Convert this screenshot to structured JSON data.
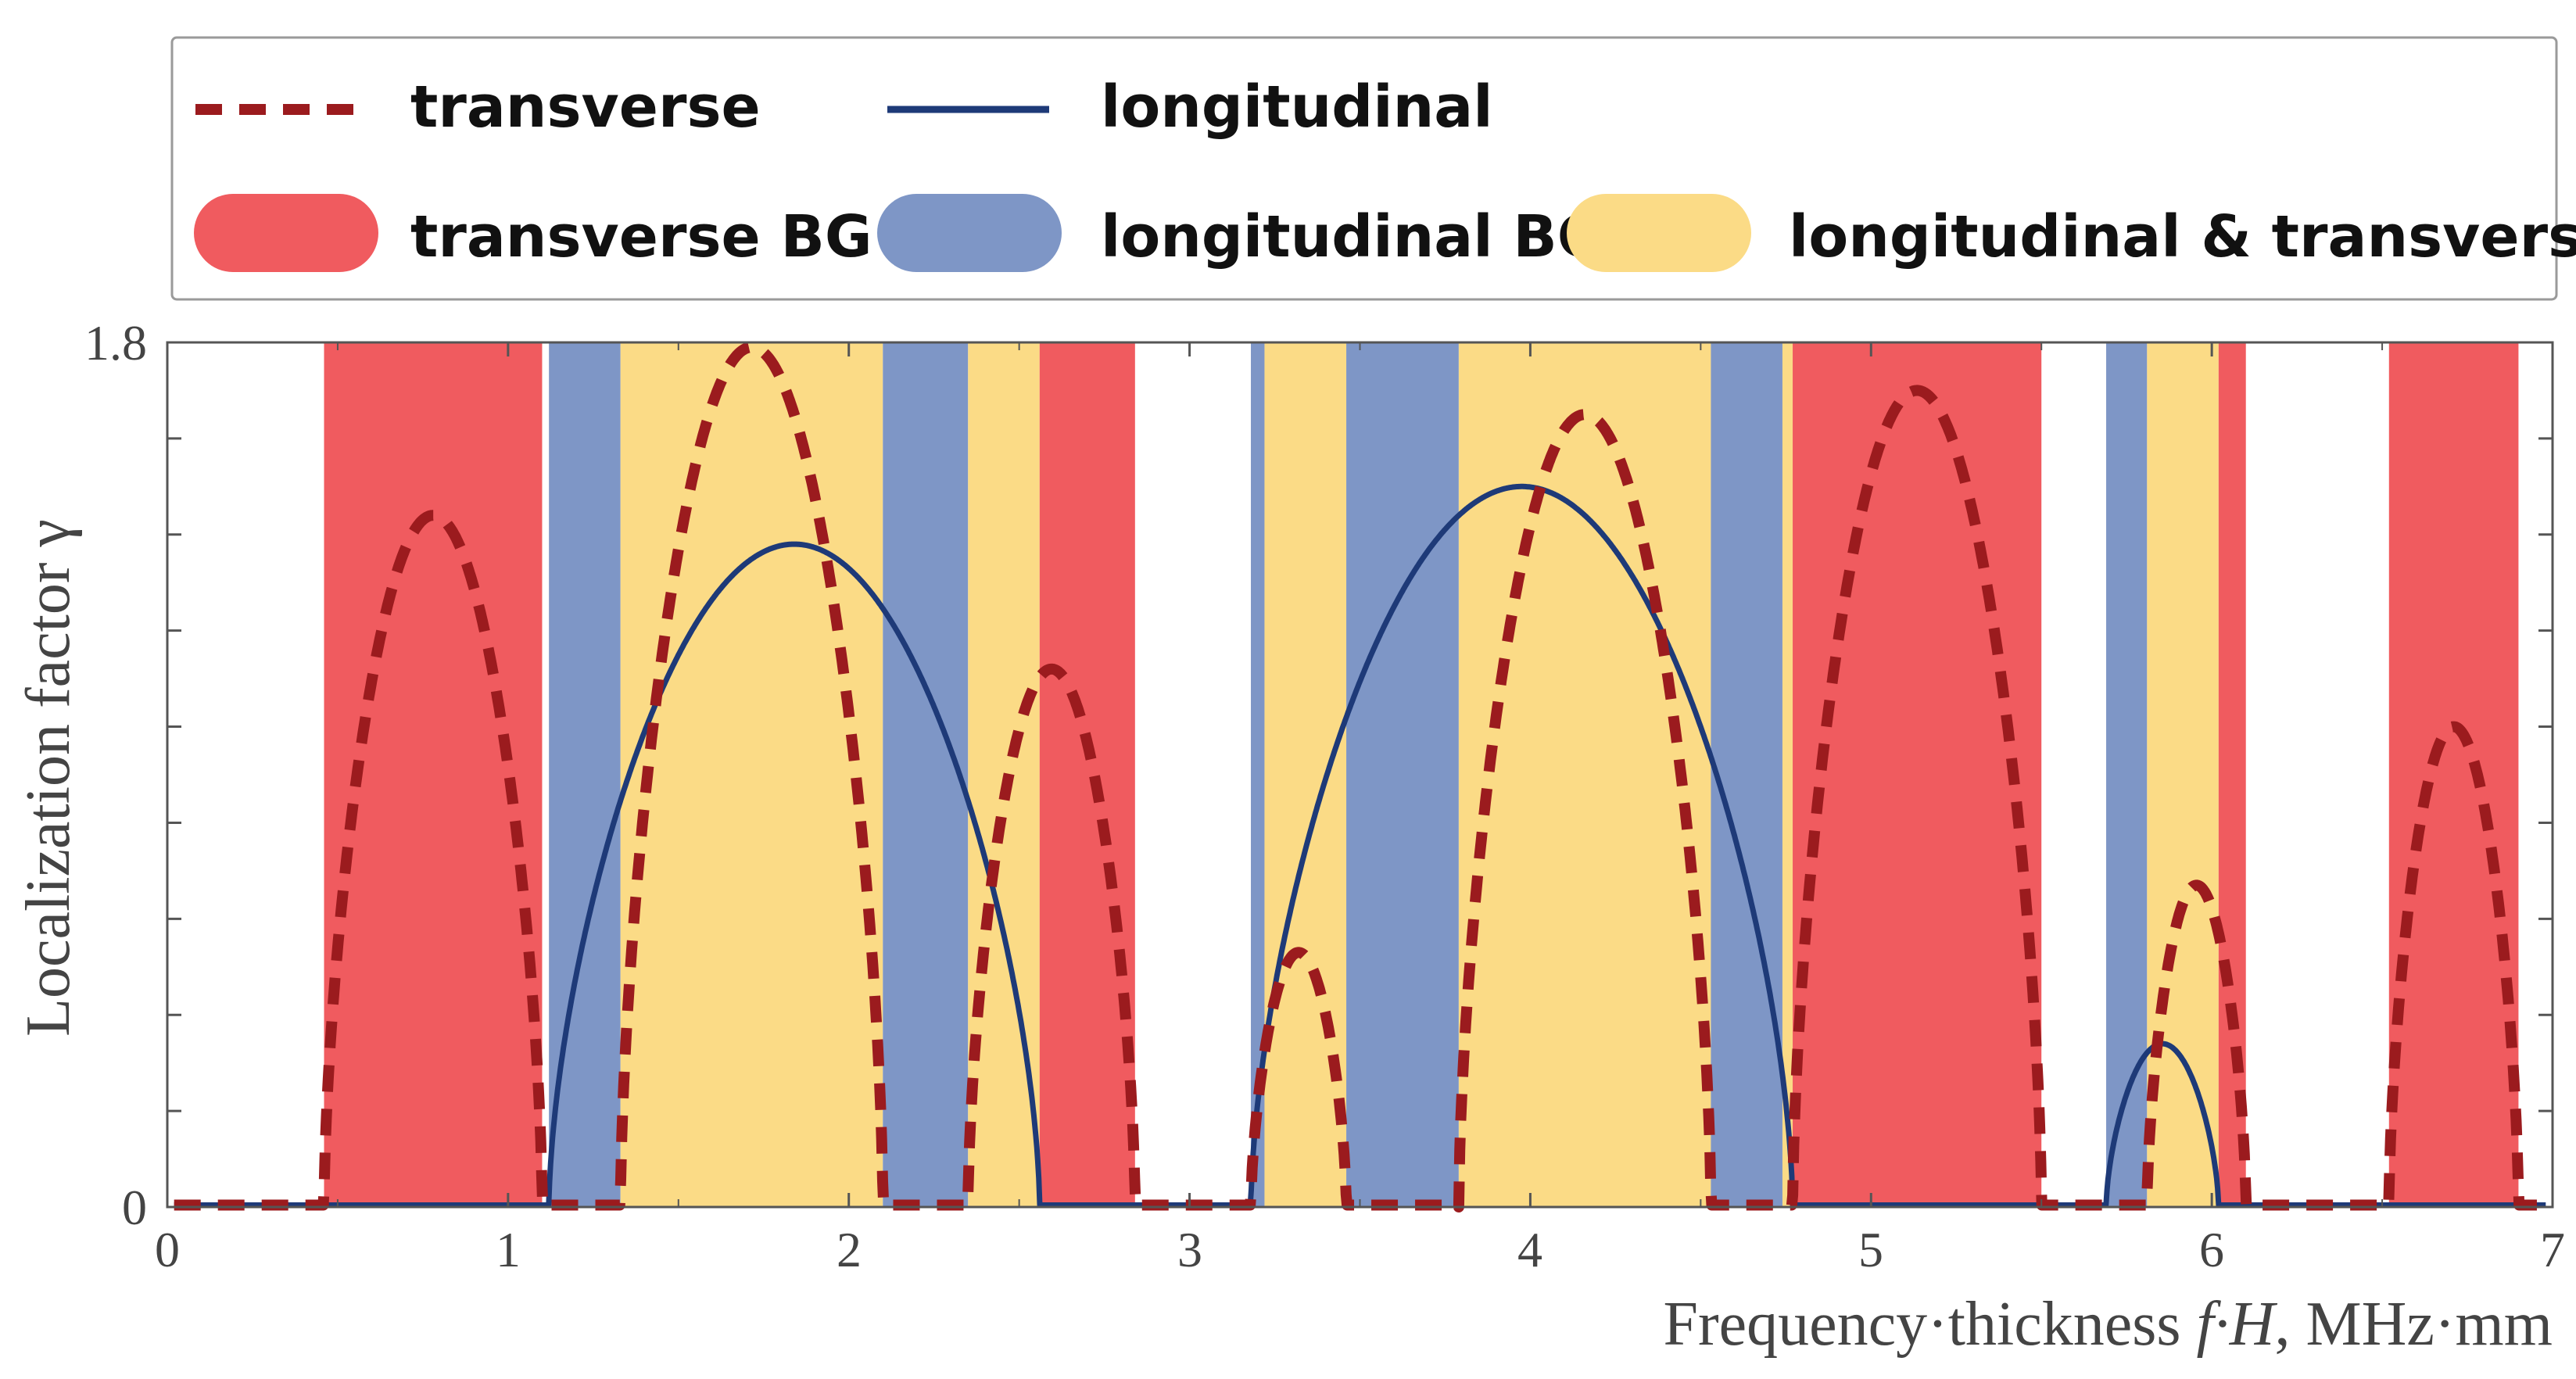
{
  "chart_data": {
    "type": "line",
    "title": "",
    "xlabel_prefix": "Frequency·thickness ",
    "xlabel_var": "f·H",
    "xlabel_suffix": ", MHz·mm",
    "ylabel": "Localization factor γ",
    "xlim": [
      0,
      7
    ],
    "ylim": [
      0,
      1.8
    ],
    "x_ticks": [
      0,
      1,
      2,
      3,
      4,
      5,
      6,
      7
    ],
    "x_tick_labels": [
      "0",
      "1",
      "2",
      "3",
      "4",
      "5",
      "6",
      "7"
    ],
    "y_tick_labels": [
      {
        "value": 0,
        "label": "0"
      },
      {
        "value": 1.8,
        "label": "1.8"
      }
    ],
    "y_minor_ticks": [
      0.2,
      0.4,
      0.6,
      0.8,
      1.0,
      1.2,
      1.4,
      1.6
    ],
    "legend": {
      "placement": "top",
      "lines": [
        {
          "label": "transverse",
          "color": "#9b1b1e",
          "style": "dashed"
        },
        {
          "label": "longitudinal",
          "color": "#1e3a78",
          "style": "solid"
        }
      ],
      "patches": [
        {
          "label": "transverse BG",
          "color": "#f05b5f"
        },
        {
          "label": "longitudinal BG",
          "color": "#7e96c6"
        },
        {
          "label": "longitudinal & transverse BG",
          "color": "#fbdb86"
        }
      ]
    },
    "band_colors": {
      "transverse": "#f05b5f",
      "longitudinal": "#7e96c6",
      "both": "#fbdb86"
    },
    "bands": [
      {
        "type": "transverse",
        "x0": 0.46,
        "x1": 1.1
      },
      {
        "type": "longitudinal",
        "x0": 1.12,
        "x1": 1.33
      },
      {
        "type": "both",
        "x0": 1.33,
        "x1": 2.1
      },
      {
        "type": "longitudinal",
        "x0": 2.1,
        "x1": 2.35
      },
      {
        "type": "both",
        "x0": 2.35,
        "x1": 2.56
      },
      {
        "type": "transverse",
        "x0": 2.56,
        "x1": 2.84
      },
      {
        "type": "longitudinal",
        "x0": 3.18,
        "x1": 3.22
      },
      {
        "type": "both",
        "x0": 3.22,
        "x1": 3.46
      },
      {
        "type": "longitudinal",
        "x0": 3.46,
        "x1": 3.79
      },
      {
        "type": "both",
        "x0": 3.79,
        "x1": 4.53
      },
      {
        "type": "longitudinal",
        "x0": 4.53,
        "x1": 4.74
      },
      {
        "type": "both",
        "x0": 4.74,
        "x1": 4.77
      },
      {
        "type": "transverse",
        "x0": 4.77,
        "x1": 5.5
      },
      {
        "type": "longitudinal",
        "x0": 5.69,
        "x1": 5.81
      },
      {
        "type": "both",
        "x0": 5.81,
        "x1": 6.02
      },
      {
        "type": "transverse",
        "x0": 6.02,
        "x1": 6.1
      },
      {
        "type": "transverse",
        "x0": 6.52,
        "x1": 6.9
      }
    ],
    "series": [
      {
        "name": "transverse",
        "color": "#9b1b1e",
        "style": "dashed",
        "domes": [
          {
            "x0": 0.46,
            "x1": 1.1,
            "peak": 1.44
          },
          {
            "x0": 1.33,
            "x1": 2.1,
            "peak": 1.79
          },
          {
            "x0": 2.35,
            "x1": 2.84,
            "peak": 1.12
          },
          {
            "x0": 3.18,
            "x1": 3.46,
            "peak": 0.53
          },
          {
            "x0": 3.79,
            "x1": 4.53,
            "peak": 1.65
          },
          {
            "x0": 4.77,
            "x1": 5.5,
            "peak": 1.7
          },
          {
            "x0": 5.81,
            "x1": 6.1,
            "peak": 0.67
          },
          {
            "x0": 6.52,
            "x1": 6.9,
            "peak": 1.0
          }
        ]
      },
      {
        "name": "longitudinal",
        "color": "#1e3a78",
        "style": "solid",
        "domes": [
          {
            "x0": 1.12,
            "x1": 2.56,
            "peak": 1.38
          },
          {
            "x0": 3.18,
            "x1": 4.77,
            "peak": 1.5
          },
          {
            "x0": 5.69,
            "x1": 6.02,
            "peak": 0.34
          }
        ]
      }
    ]
  }
}
